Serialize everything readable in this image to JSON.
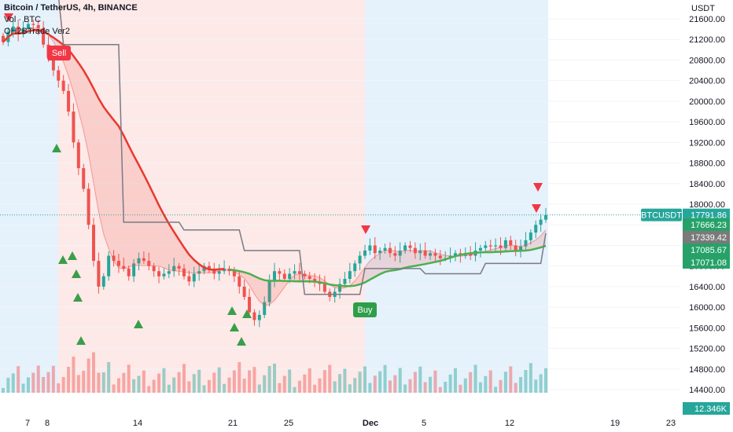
{
  "legend": {
    "symbol_title": "Bitcoin / TetherUS, 4h, BINANCE",
    "volume_label": "Vol · BTC",
    "indicator_label": "OH2BTrade Ver2"
  },
  "chart_data": {
    "type": "candlestick",
    "price_axis_unit": "USDT",
    "ylim": [
      14000,
      21800
    ],
    "y_ticks": [
      21600,
      21200,
      20800,
      20400,
      20000,
      19600,
      19200,
      18800,
      18400,
      18000,
      17600,
      17200,
      16800,
      16400,
      16000,
      15600,
      15200,
      14800,
      14400
    ],
    "x_ticks": [
      "7",
      "8",
      "14",
      "21",
      "25",
      "Dec",
      "5",
      "12",
      "19",
      "23"
    ],
    "current_price": {
      "symbol": "BTCUSDT",
      "value": "17791.86"
    },
    "price_tags": [
      {
        "value": "17666.23",
        "color": "#26a269"
      },
      {
        "value": "17339.42",
        "color": "#7a7a7a"
      },
      {
        "value": "17085.67",
        "color": "#26a269"
      },
      {
        "value": "17071.08",
        "color": "#26a269"
      }
    ],
    "volume_tag": "12.346K",
    "signals": [
      {
        "label": "Sell",
        "price": 20850,
        "color": "#f23645"
      },
      {
        "label": "Buy",
        "price": 16200,
        "color": "#2e9e48"
      }
    ],
    "close_series": [
      21150,
      21350,
      21450,
      21300,
      21400,
      21500,
      21480,
      21420,
      21100,
      20850,
      20600,
      20400,
      20200,
      19800,
      19200,
      18700,
      18300,
      17600,
      16900,
      16400,
      16600,
      17000,
      16900,
      16800,
      16750,
      16600,
      16850,
      16950,
      16900,
      16800,
      16700,
      16600,
      16650,
      16700,
      16800,
      16750,
      16600,
      16500,
      16650,
      16700,
      16800,
      16750,
      16650,
      16700,
      16750,
      16700,
      16600,
      16400,
      16200,
      15900,
      15750,
      15850,
      16100,
      16500,
      16700,
      16650,
      16550,
      16650,
      16700,
      16650,
      16600,
      16550,
      16500,
      16450,
      16300,
      16200,
      16300,
      16450,
      16550,
      16700,
      16850,
      17000,
      17100,
      17200,
      17050,
      17100,
      17150,
      17050,
      17000,
      17100,
      17200,
      17150,
      17050,
      17100,
      17000,
      17050,
      17000,
      16950,
      16950,
      17000,
      17050,
      17000,
      17050,
      17000,
      17100,
      17150,
      17200,
      17180,
      17200,
      17150,
      17300,
      17200,
      17100,
      17180,
      17300,
      17450,
      17600,
      17700,
      17790
    ],
    "series_colors": {
      "up": "#26a69a",
      "down": "#ef5350",
      "ma_red": "#e8392f",
      "ma_green": "#4caf50",
      "stop_line": "#787b86"
    },
    "backgrounds": {
      "bearish_zone": "#fde9e7",
      "bullish_zone": "#e5f1fb"
    }
  }
}
